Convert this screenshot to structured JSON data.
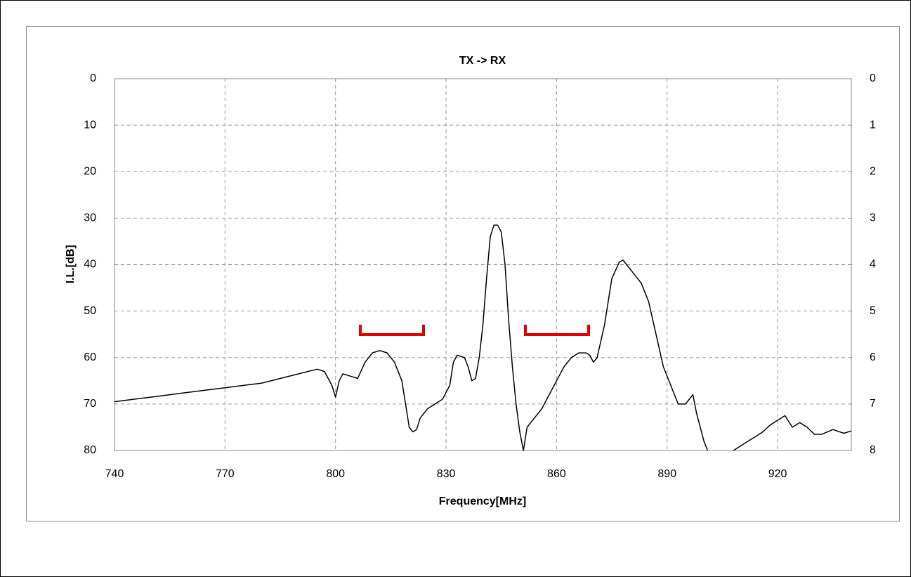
{
  "chart_data": {
    "type": "line",
    "title": "TX -> RX",
    "x_label": "Frequency[MHz]",
    "y_label": "I.L.[dB]",
    "x": [
      740,
      745,
      750,
      755,
      760,
      765,
      770,
      775,
      780,
      785,
      790,
      795,
      797,
      799,
      800,
      801,
      802,
      804,
      806,
      808,
      810,
      812,
      814,
      816,
      818,
      819,
      820,
      821,
      822,
      823,
      825,
      827,
      829,
      831,
      832,
      833,
      835,
      836,
      837,
      838,
      839,
      840,
      841,
      842,
      843,
      844,
      845,
      846,
      847,
      848,
      849,
      850,
      851,
      852,
      854,
      856,
      858,
      860,
      862,
      864,
      866,
      868,
      869,
      870,
      871,
      873,
      875,
      877,
      878,
      879,
      881,
      883,
      885,
      887,
      889,
      891,
      893,
      895,
      897,
      898,
      900,
      901,
      903,
      906,
      908,
      910,
      912,
      914,
      916,
      918,
      920,
      922,
      924,
      926,
      928,
      930,
      932,
      935,
      938,
      940
    ],
    "values": [
      69.5,
      69,
      68.5,
      68,
      67.5,
      67,
      66.5,
      66,
      65.5,
      64.5,
      63.5,
      62.5,
      63,
      66,
      68.5,
      65,
      63.5,
      64,
      64.5,
      61,
      59,
      58.5,
      59,
      61,
      65,
      70,
      75,
      76,
      75.5,
      73,
      71,
      70,
      69,
      66,
      61,
      59.5,
      60,
      62,
      65,
      64.5,
      60,
      53,
      43,
      34,
      31.5,
      31.5,
      33,
      40,
      52,
      62,
      70,
      76,
      80,
      75,
      73,
      71,
      68,
      65,
      62,
      60,
      59,
      59,
      59.5,
      61,
      60,
      53,
      43,
      39.5,
      39,
      40,
      42,
      44,
      48,
      55,
      62,
      66,
      70,
      70,
      68,
      72,
      78,
      80,
      null,
      null,
      80,
      79,
      78,
      77,
      76,
      74.5,
      73.5,
      72.5,
      75,
      74,
      75,
      76.5,
      76.5,
      75.5,
      76.3,
      75.8
    ],
    "color": "#000000",
    "xlim": [
      740,
      940
    ],
    "xticks": [
      740,
      770,
      800,
      830,
      860,
      890,
      920
    ],
    "ylim": [
      80,
      0
    ],
    "yticks": [
      0,
      10,
      20,
      30,
      40,
      50,
      60,
      70,
      80
    ],
    "y2lim": [
      8,
      0
    ],
    "y2ticks": [
      0,
      1,
      2,
      3,
      4,
      5,
      6,
      7,
      8
    ],
    "grid": true
  }
}
